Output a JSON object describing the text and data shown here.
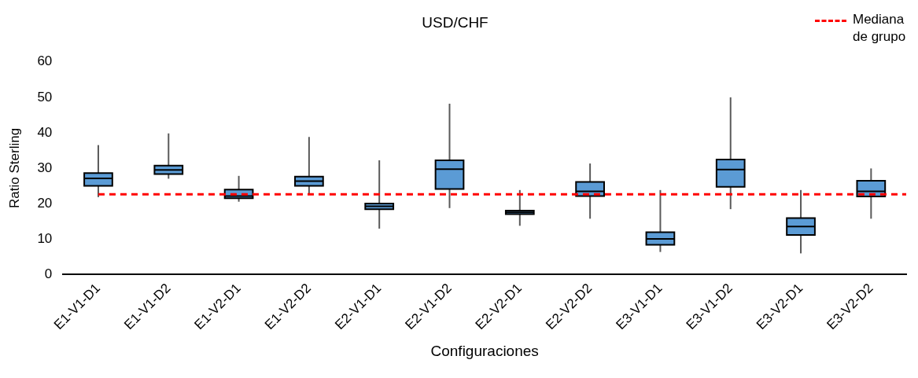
{
  "chart_data": {
    "type": "box",
    "title": "USD/CHF",
    "xlabel": "Configuraciones",
    "ylabel": "Ratio Sterling",
    "categories": [
      "E1-V1-D1",
      "E1-V1-D2",
      "E1-V2-D1",
      "E1-V2-D2",
      "E2-V1-D1",
      "E2-V1-D2",
      "E2-V2-D1",
      "E2-V2-D2",
      "E3-V1-D1",
      "E3-V1-D2",
      "E3-V2-D1",
      "E3-V2-D2"
    ],
    "color": "#5b9bd5",
    "boxes": [
      {
        "low": 21.8,
        "q1": 25.0,
        "median": 27.1,
        "q3": 28.6,
        "high": 36.5
      },
      {
        "low": 27.0,
        "q1": 28.3,
        "median": 29.5,
        "q3": 30.7,
        "high": 39.8
      },
      {
        "low": 20.5,
        "q1": 21.5,
        "median": 22.1,
        "q3": 23.9,
        "high": 27.8
      },
      {
        "low": 22.6,
        "q1": 25.0,
        "median": 26.3,
        "q3": 27.6,
        "high": 38.8
      },
      {
        "low": 12.9,
        "q1": 18.4,
        "median": 19.2,
        "q3": 20.0,
        "high": 32.2
      },
      {
        "low": 18.7,
        "q1": 24.1,
        "median": 29.7,
        "q3": 32.2,
        "high": 48.2
      },
      {
        "low": 13.7,
        "q1": 17.0,
        "median": 17.5,
        "q3": 18.0,
        "high": 23.8
      },
      {
        "low": 15.7,
        "q1": 22.1,
        "median": 23.4,
        "q3": 26.1,
        "high": 31.3
      },
      {
        "low": 6.3,
        "q1": 8.3,
        "median": 10.0,
        "q3": 11.9,
        "high": 23.8
      },
      {
        "low": 18.4,
        "q1": 24.7,
        "median": 29.6,
        "q3": 32.4,
        "high": 50.0
      },
      {
        "low": 5.9,
        "q1": 11.1,
        "median": 13.5,
        "q3": 15.9,
        "high": 23.8
      },
      {
        "low": 15.7,
        "q1": 22.0,
        "median": 23.4,
        "q3": 26.4,
        "high": 29.9
      }
    ],
    "ylim": [
      0,
      60
    ],
    "yticks": [
      0,
      10,
      20,
      30,
      40,
      50,
      60
    ],
    "grid": false,
    "legend": "top right",
    "ref_lines": [
      {
        "axis": "y",
        "value": 22.6,
        "label": "Mediana de grupo",
        "color": "#ff0000",
        "line_style": "dashed"
      }
    ]
  }
}
